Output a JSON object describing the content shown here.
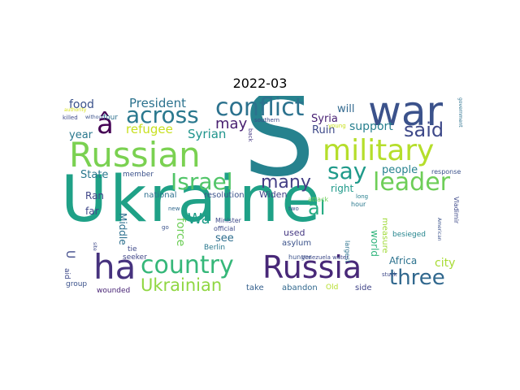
{
  "title": "2022-03",
  "words": {
    "ukraine": {
      "text": "Ukraine",
      "color": "#1fa187"
    },
    "s": {
      "text": "S",
      "color": "#26828e"
    },
    "russian": {
      "text": "Russian",
      "color": "#7ad151"
    },
    "war": {
      "text": "war",
      "color": "#3b528b"
    },
    "conflict": {
      "text": "conflict",
      "color": "#2c728e"
    },
    "military": {
      "text": "military",
      "color": "#b5de2b"
    },
    "russia": {
      "text": "Russia",
      "color": "#482878"
    },
    "country": {
      "text": "country",
      "color": "#35b779"
    },
    "ha": {
      "text": "ha",
      "color": "#46327e"
    },
    "three": {
      "text": "three",
      "color": "#31688e"
    },
    "leader": {
      "text": "leader",
      "color": "#6ece58"
    },
    "israel": {
      "text": "Israel",
      "color": "#52c569"
    },
    "across": {
      "text": "across",
      "color": "#2a788e"
    },
    "say": {
      "text": "say",
      "color": "#1f9a8a"
    },
    "said": {
      "text": "said",
      "color": "#3e4989"
    },
    "a_circ": {
      "text": "â",
      "color": "#440154"
    },
    "ukrainian": {
      "text": "Ukrainian",
      "color": "#90d743"
    },
    "many": {
      "text": "many",
      "color": "#433e85"
    },
    "al": {
      "text": "al",
      "color": "#25ab82"
    },
    "president": {
      "text": "President",
      "color": "#2c728e"
    },
    "refugee": {
      "text": "refugee",
      "color": "#c8e020"
    },
    "food": {
      "text": "food",
      "color": "#3b528b"
    },
    "may": {
      "text": "may",
      "color": "#481f70"
    },
    "syrian": {
      "text": "Syrian",
      "color": "#1f948c"
    },
    "support": {
      "text": "support",
      "color": "#277f8e"
    },
    "syria": {
      "text": "Syria",
      "color": "#482173"
    },
    "ruin": {
      "text": "Ruin",
      "color": "#3e4a89"
    },
    "will": {
      "text": "will",
      "color": "#31688e"
    },
    "year": {
      "text": "year",
      "color": "#2a788e"
    },
    "people": {
      "text": "people",
      "color": "#26828e"
    },
    "state": {
      "text": "State",
      "color": "#2a788e"
    },
    "member": {
      "text": "member",
      "color": "#3b528b"
    },
    "right": {
      "text": "right",
      "color": "#1f9a8a"
    },
    "leader2": {
      "text": "Wa",
      "color": "#1e9c89"
    },
    "ran": {
      "text": "Ran",
      "color": "#404688"
    },
    "national": {
      "text": "national",
      "color": "#2d708e"
    },
    "resolution": {
      "text": "resolution",
      "color": "#3b528b"
    },
    "widen": {
      "text": "Widen",
      "color": "#414487"
    },
    "far": {
      "text": "far",
      "color": "#3f4788"
    },
    "middle": {
      "text": "Middle",
      "color": "#2d708e"
    },
    "force": {
      "text": "force",
      "color": "#6ece58"
    },
    "see": {
      "text": "see",
      "color": "#2e6e8e"
    },
    "used": {
      "text": "used",
      "color": "#453882"
    },
    "asylum": {
      "text": "asylum",
      "color": "#3b528b"
    },
    "world": {
      "text": "world",
      "color": "#2fb47c"
    },
    "measure": {
      "text": "measure",
      "color": "#a0da39"
    },
    "city": {
      "text": "city",
      "color": "#a8db34"
    },
    "africa": {
      "text": "Africa",
      "color": "#2c728e"
    },
    "take": {
      "text": "take",
      "color": "#35608d"
    },
    "abandon": {
      "text": "abandon",
      "color": "#31688e"
    },
    "old": {
      "text": "Old",
      "color": "#b5de2b"
    },
    "side": {
      "text": "side",
      "color": "#404588"
    },
    "besieged": {
      "text": "besieged",
      "color": "#25858e"
    },
    "minister": {
      "text": "Minister",
      "color": "#3e4989"
    },
    "official": {
      "text": "official",
      "color": "#3e4a89"
    },
    "berlin": {
      "text": "Berlin",
      "color": "#2a788e"
    },
    "hunger": {
      "text": "hunger",
      "color": "#3b528b"
    },
    "largest": {
      "text": "largest",
      "color": "#2c728e"
    },
    "seeker": {
      "text": "seeker",
      "color": "#404688"
    },
    "tie": {
      "text": "tie",
      "color": "#3e4989"
    },
    "group": {
      "text": "group",
      "color": "#3b528b"
    },
    "wounded": {
      "text": "wounded",
      "color": "#482475"
    },
    "u": {
      "text": "U",
      "color": "#3e4989"
    },
    "aid": {
      "text": "aid",
      "color": "#3e4989"
    },
    "four": {
      "text": "four",
      "color": "#2d708e"
    },
    "killed": {
      "text": "killed",
      "color": "#3e4989"
    },
    "without": {
      "text": "without",
      "color": "#3b528b"
    },
    "authority": {
      "text": "authority",
      "color": "#d8e219"
    },
    "southern": {
      "text": "southern",
      "color": "#3e4a89"
    },
    "two": {
      "text": "two",
      "color": "#3b528b"
    },
    "attack": {
      "text": "attack",
      "color": "#6ece58"
    },
    "long": {
      "text": "long",
      "color": "#277f8e"
    },
    "response": {
      "text": "response",
      "color": "#3b528b"
    },
    "vladimir": {
      "text": "Vladimir",
      "color": "#3e4989"
    },
    "hour": {
      "text": "hour",
      "color": "#2a788e"
    },
    "american": {
      "text": "American",
      "color": "#3b528b"
    },
    "stuck": {
      "text": "stuck",
      "color": "#3e4989"
    },
    "venezuela_water": {
      "text": "Venezuela water",
      "color": "#3e4a89"
    },
    "new": {
      "text": "new",
      "color": "#31688e"
    },
    "go": {
      "text": "go",
      "color": "#3b528b"
    },
    "back": {
      "text": "back",
      "color": "#453882"
    },
    "young": {
      "text": "young",
      "color": "#c8e020"
    },
    "government": {
      "text": "government",
      "color": "#2c728e"
    },
    "site": {
      "text": "site",
      "color": "#3e4989"
    }
  }
}
